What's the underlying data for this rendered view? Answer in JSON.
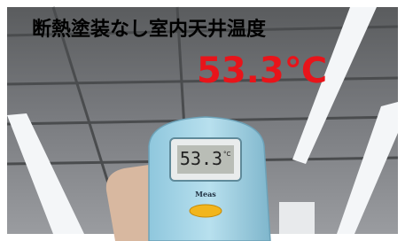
{
  "overlay": {
    "title": "断熱塗装なし室内天井温度",
    "temperature": "53.3℃"
  },
  "device": {
    "reading": "53.3",
    "unit": "°C",
    "button_label": "Meas"
  }
}
